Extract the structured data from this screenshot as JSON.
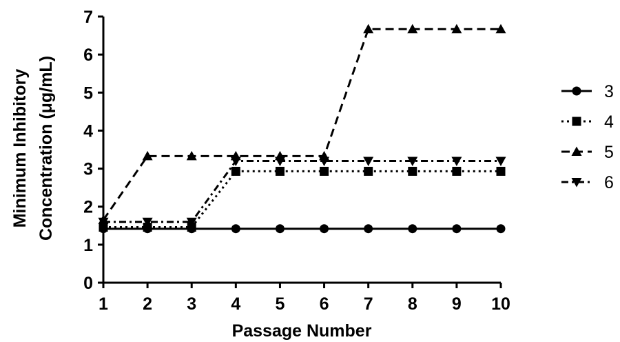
{
  "chart_data": {
    "type": "line",
    "xlabel": "Passage Number",
    "ylabel_line1": "Minimum  Inhibitory",
    "ylabel_line2": "Concentration (μg/mL)",
    "x": [
      1,
      2,
      3,
      4,
      5,
      6,
      7,
      8,
      9,
      10
    ],
    "xlim": [
      1,
      10
    ],
    "ylim": [
      0,
      7
    ],
    "xticks": [
      1,
      2,
      3,
      4,
      5,
      6,
      7,
      8,
      9,
      10
    ],
    "yticks": [
      0,
      1,
      2,
      3,
      4,
      5,
      6,
      7
    ],
    "grid": false,
    "legend_position": "right",
    "series": [
      {
        "name": "3",
        "marker": "circle",
        "dash": "solid",
        "values": [
          1.42,
          1.42,
          1.42,
          1.42,
          1.42,
          1.42,
          1.42,
          1.42,
          1.42,
          1.42
        ]
      },
      {
        "name": "4",
        "marker": "square",
        "dash": "dotted",
        "values": [
          1.46,
          1.46,
          1.46,
          2.93,
          2.93,
          2.93,
          2.93,
          2.93,
          2.93,
          2.93
        ]
      },
      {
        "name": "5",
        "marker": "triangle-up",
        "dash": "dashed",
        "values": [
          1.65,
          3.33,
          3.33,
          3.33,
          3.33,
          3.33,
          6.67,
          6.67,
          6.67,
          6.67
        ]
      },
      {
        "name": "6",
        "marker": "triangle-down",
        "dash": "dash-dot",
        "values": [
          1.6,
          1.6,
          1.6,
          3.2,
          3.2,
          3.2,
          3.2,
          3.2,
          3.2,
          3.2
        ]
      }
    ]
  }
}
